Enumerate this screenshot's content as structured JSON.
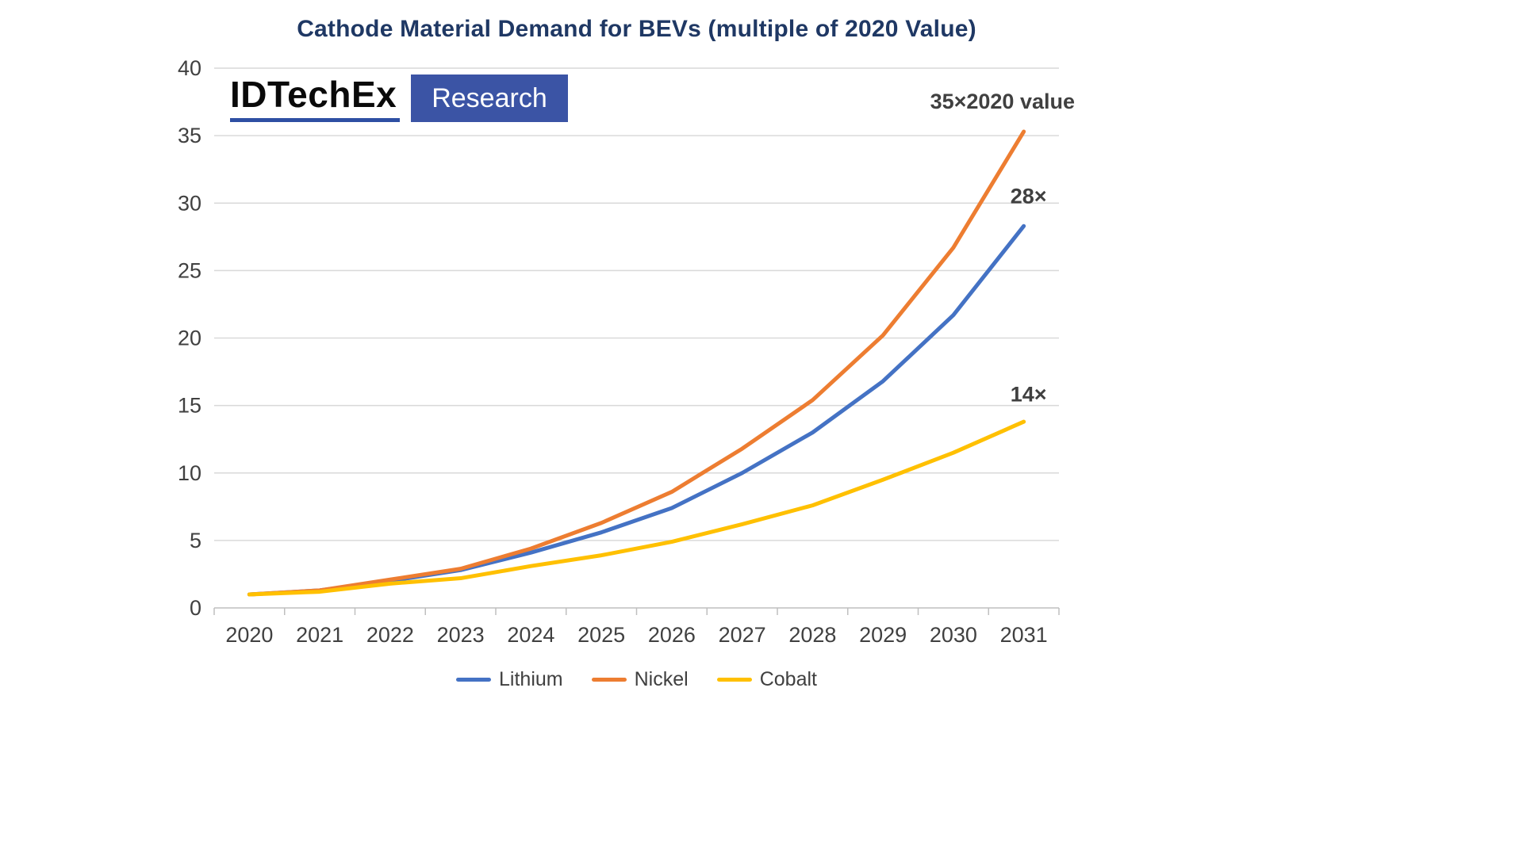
{
  "logo": {
    "brand": "IDTechEx",
    "product": "Research"
  },
  "colors": {
    "background": "#FFFFFF",
    "title": "#1F3864",
    "axis_text": "#404040",
    "grid": "#D9D9D9",
    "axis_line": "#BFBFBF",
    "annotation": "#404040",
    "legend_text": "#404040",
    "logo_text": "#0A0A0A",
    "logo_underline": "#2E4FA3",
    "logo_box": "#3B54A5"
  },
  "chart_data": {
    "type": "line",
    "title": "Cathode Material Demand for BEVs (multiple of 2020 Value)",
    "xlabel": "",
    "ylabel": "",
    "ylim": [
      0,
      40
    ],
    "ytick_step": 5,
    "grid": true,
    "legend_position": "bottom",
    "categories": [
      "2020",
      "2021",
      "2022",
      "2023",
      "2024",
      "2025",
      "2026",
      "2027",
      "2028",
      "2029",
      "2030",
      "2031"
    ],
    "series": [
      {
        "name": "Lithium",
        "color": "#4472C4",
        "values": [
          1,
          1.3,
          2,
          2.8,
          4.1,
          5.6,
          7.4,
          10,
          13,
          16.8,
          21.7,
          28.3
        ]
      },
      {
        "name": "Nickel",
        "color": "#ED7D31",
        "values": [
          1,
          1.3,
          2.1,
          2.9,
          4.4,
          6.3,
          8.6,
          11.8,
          15.4,
          20.2,
          26.7,
          35.3
        ]
      },
      {
        "name": "Cobalt",
        "color": "#FFC000",
        "values": [
          1,
          1.2,
          1.8,
          2.2,
          3.1,
          3.9,
          4.9,
          6.2,
          7.6,
          9.5,
          11.5,
          13.8
        ]
      }
    ],
    "annotations": [
      {
        "text": "35×2020 value",
        "year": "2031",
        "value": 37
      },
      {
        "text": "28×",
        "year": "2031",
        "value": 30
      },
      {
        "text": "14×",
        "year": "2031",
        "value": 15.3
      }
    ]
  }
}
